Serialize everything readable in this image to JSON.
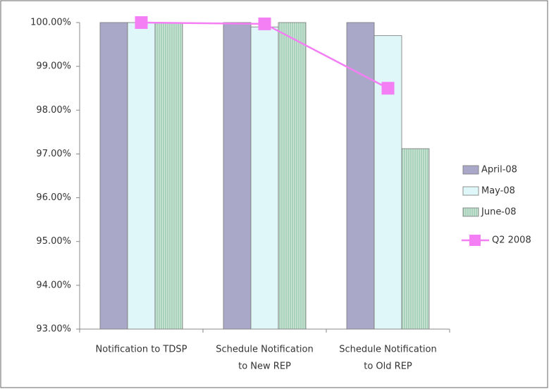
{
  "chart_data": {
    "type": "bar",
    "categories": [
      [
        "Notification to TDSP"
      ],
      [
        "Schedule Notification",
        "to New REP"
      ],
      [
        "Schedule Notification",
        "to Old REP"
      ]
    ],
    "series": [
      {
        "name": "April-08",
        "color": "#aaa8c8",
        "values": [
          100,
          100,
          100
        ]
      },
      {
        "name": "May-08",
        "color": "#dff7f8",
        "values": [
          100,
          99.9,
          99.7
        ]
      },
      {
        "name": "June-08",
        "color": "#a9d2bb",
        "pattern": "vertical-stripes",
        "values": [
          100,
          100,
          97.12
        ]
      },
      {
        "name": "Q2 2008",
        "type": "line",
        "color": "#f47ef4",
        "values": [
          100,
          99.97,
          98.5
        ]
      }
    ],
    "ylim": [
      93,
      100
    ],
    "yticks": [
      {
        "value": 93,
        "label": "93.00%"
      },
      {
        "value": 94,
        "label": "94.00%"
      },
      {
        "value": 95,
        "label": "95.00%"
      },
      {
        "value": 96,
        "label": "96.00%"
      },
      {
        "value": 97,
        "label": "97.00%"
      },
      {
        "value": 98,
        "label": "98.00%"
      },
      {
        "value": 99,
        "label": "99.00%"
      },
      {
        "value": 100,
        "label": "100.00%"
      }
    ],
    "legend": "right"
  }
}
